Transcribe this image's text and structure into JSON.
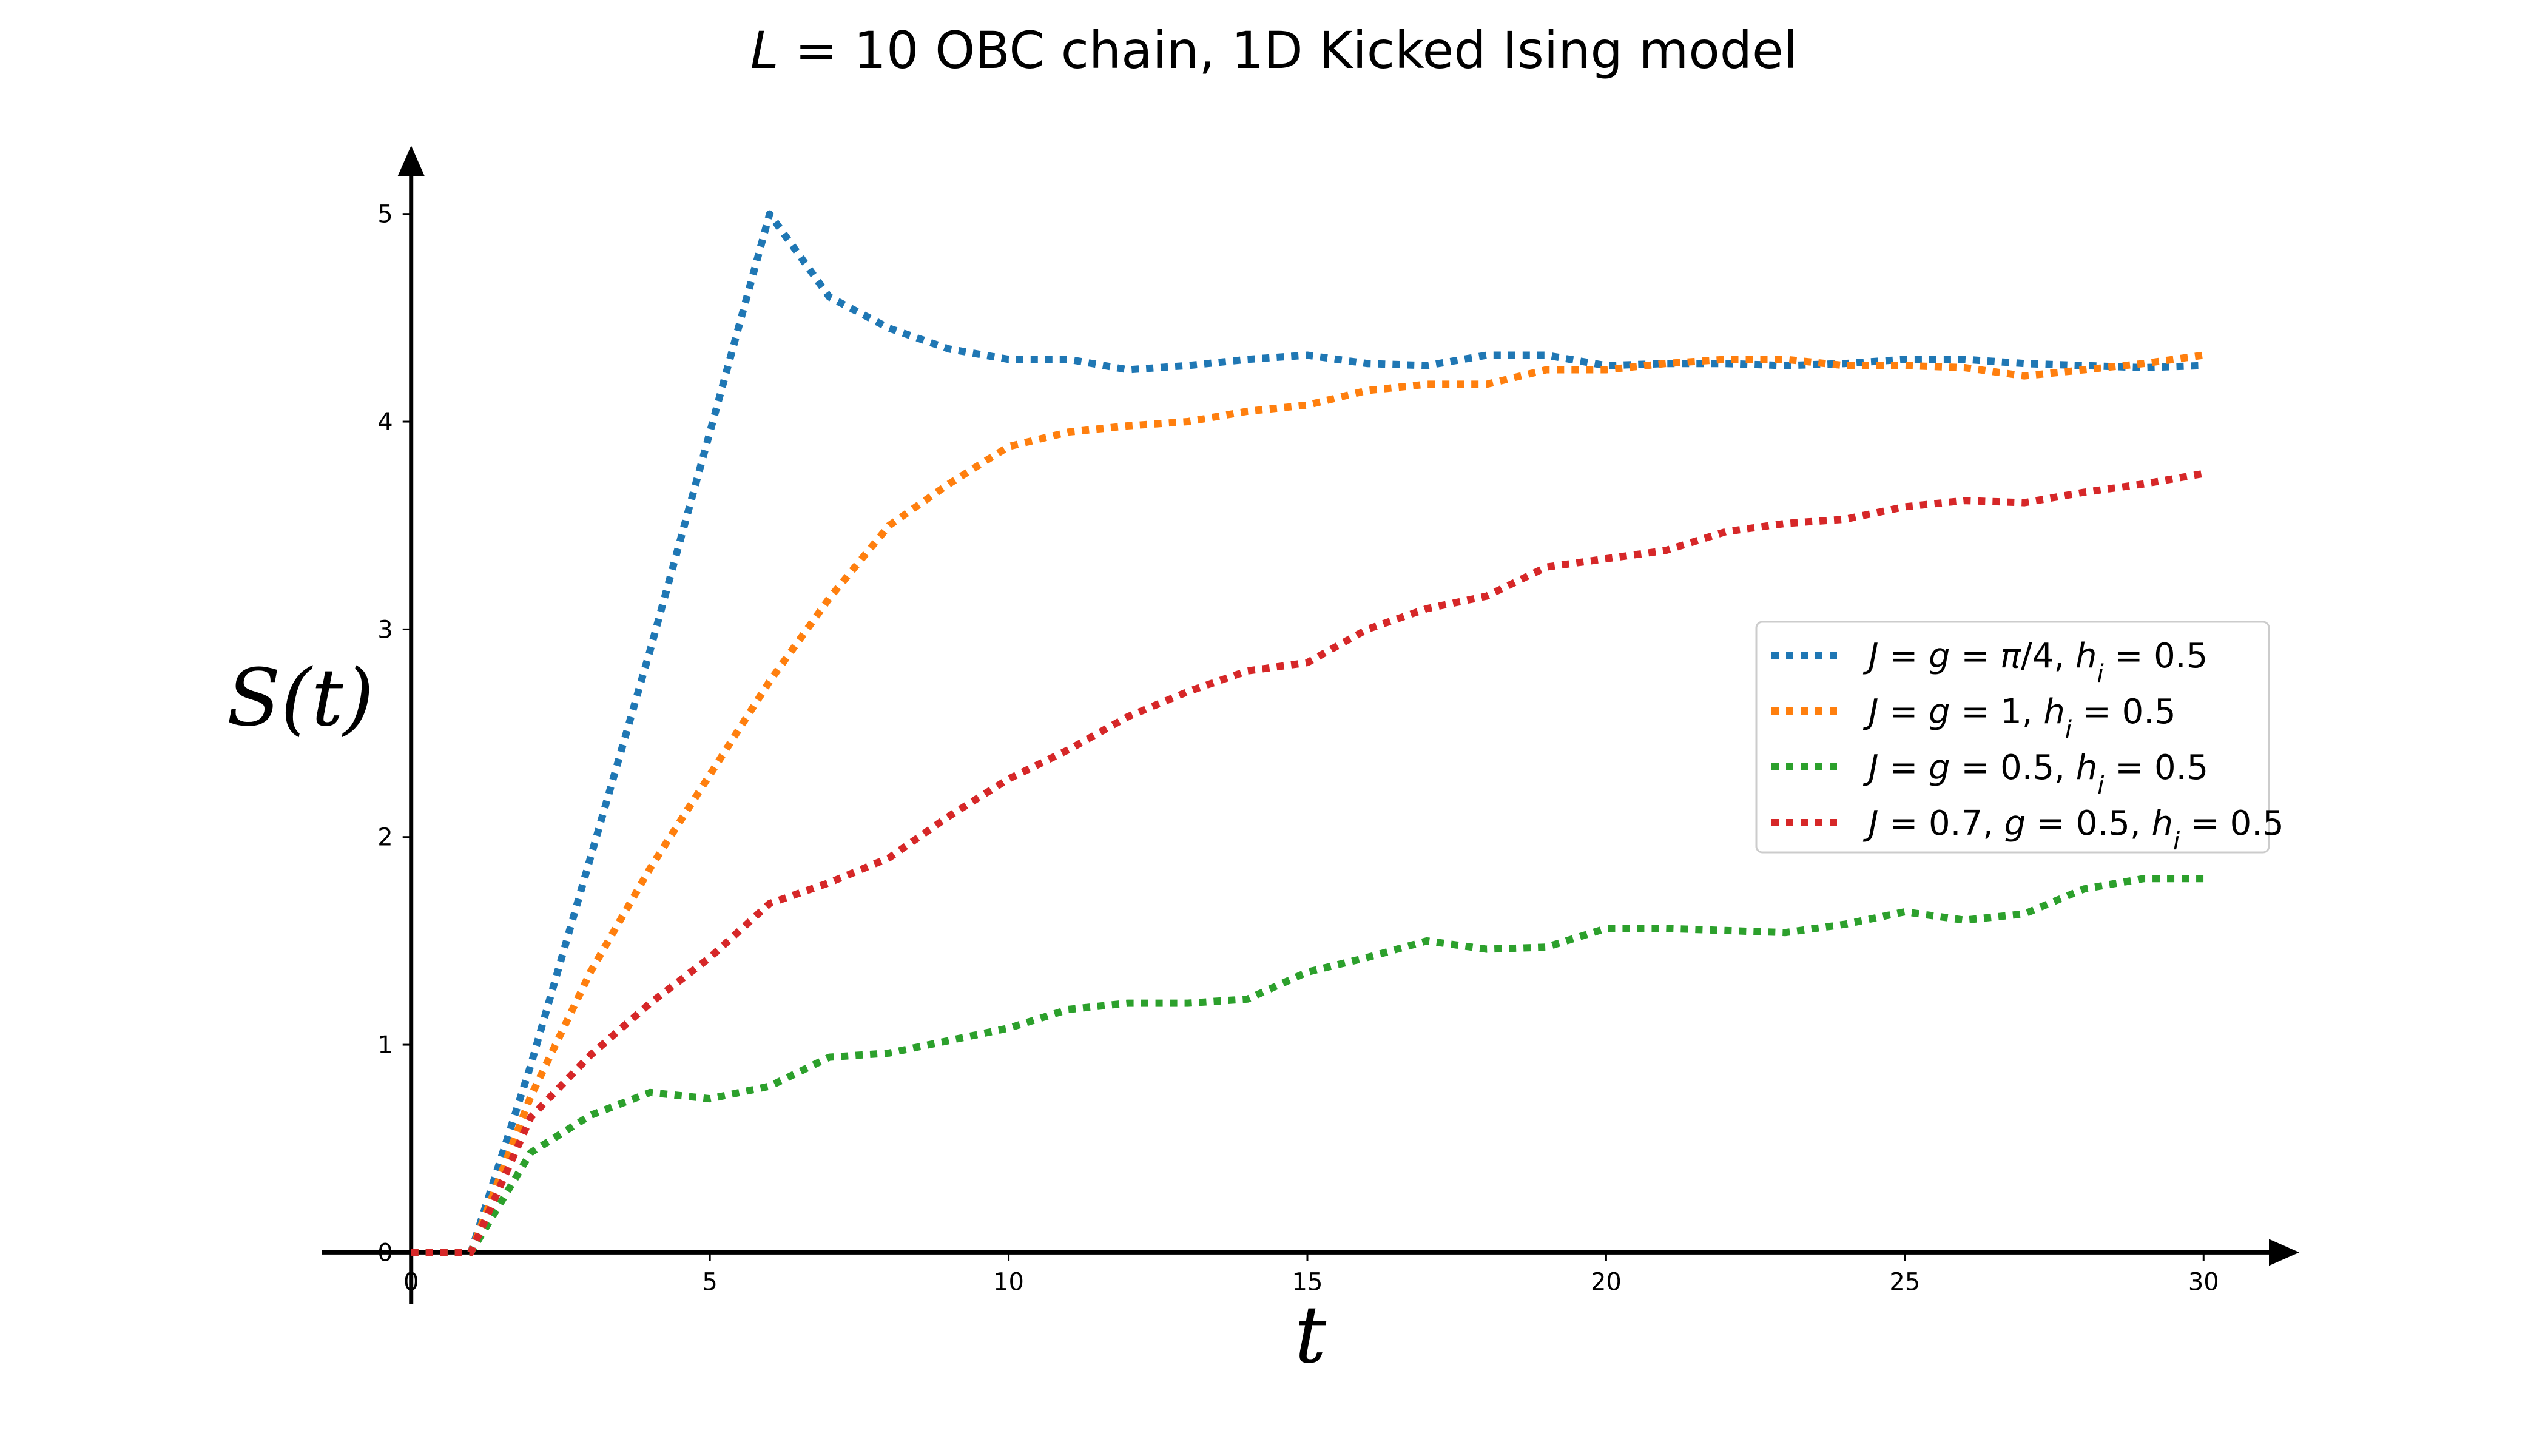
{
  "chart_data": {
    "type": "line",
    "title": "L = 10 OBC chain, 1D Kicked Ising model",
    "xlabel": "t",
    "ylabel": "S(t)",
    "xlim": [
      -1.5,
      31.5
    ],
    "ylim": [
      -0.25,
      5.3
    ],
    "x_ticks": [
      0,
      5,
      10,
      15,
      20,
      25,
      30
    ],
    "y_ticks": [
      0,
      1,
      2,
      3,
      4,
      5
    ],
    "grid": false,
    "legend_position": "center-right",
    "series": [
      {
        "name": "J = g = π/4, h_i = 0.5",
        "color": "#1f77b4",
        "x": [
          0,
          1,
          2,
          3,
          4,
          5,
          6,
          7,
          8,
          9,
          10,
          11,
          12,
          13,
          14,
          15,
          16,
          17,
          18,
          19,
          20,
          21,
          22,
          23,
          24,
          25,
          26,
          27,
          28,
          29,
          30
        ],
        "y": [
          0.0,
          0.0,
          0.9,
          1.9,
          2.9,
          3.95,
          5.0,
          4.6,
          4.45,
          4.35,
          4.3,
          4.3,
          4.25,
          4.27,
          4.3,
          4.32,
          4.28,
          4.27,
          4.32,
          4.32,
          4.27,
          4.28,
          4.28,
          4.27,
          4.28,
          4.3,
          4.3,
          4.28,
          4.27,
          4.26,
          4.27
        ]
      },
      {
        "name": "J = g = 1, h_i = 0.5",
        "color": "#ff7f0e",
        "x": [
          0,
          1,
          2,
          3,
          4,
          5,
          6,
          7,
          8,
          9,
          10,
          11,
          12,
          13,
          14,
          15,
          16,
          17,
          18,
          19,
          20,
          21,
          22,
          23,
          24,
          25,
          26,
          27,
          28,
          29,
          30
        ],
        "y": [
          0.0,
          0.0,
          0.75,
          1.35,
          1.85,
          2.3,
          2.75,
          3.15,
          3.5,
          3.7,
          3.88,
          3.95,
          3.98,
          4.0,
          4.05,
          4.08,
          4.15,
          4.18,
          4.18,
          4.25,
          4.25,
          4.28,
          4.3,
          4.3,
          4.27,
          4.27,
          4.26,
          4.22,
          4.25,
          4.28,
          4.32
        ]
      },
      {
        "name": "J = g = 0.5, h_i = 0.5",
        "color": "#2ca02c",
        "x": [
          0,
          1,
          2,
          3,
          4,
          5,
          6,
          7,
          8,
          9,
          10,
          11,
          12,
          13,
          14,
          15,
          16,
          17,
          18,
          19,
          20,
          21,
          22,
          23,
          24,
          25,
          26,
          27,
          28,
          29,
          30
        ],
        "y": [
          0.0,
          0.0,
          0.48,
          0.66,
          0.77,
          0.74,
          0.8,
          0.94,
          0.96,
          1.02,
          1.08,
          1.17,
          1.2,
          1.2,
          1.22,
          1.35,
          1.42,
          1.5,
          1.46,
          1.47,
          1.56,
          1.56,
          1.55,
          1.54,
          1.58,
          1.64,
          1.6,
          1.63,
          1.75,
          1.8,
          1.8
        ]
      },
      {
        "name": "J = 0.7, g = 0.5, h_i = 0.5",
        "color": "#d62728",
        "x": [
          0,
          1,
          2,
          3,
          4,
          5,
          6,
          7,
          8,
          9,
          10,
          11,
          12,
          13,
          14,
          15,
          16,
          17,
          18,
          19,
          20,
          21,
          22,
          23,
          24,
          25,
          26,
          27,
          28,
          29,
          30
        ],
        "y": [
          0.0,
          0.0,
          0.65,
          0.95,
          1.2,
          1.42,
          1.68,
          1.78,
          1.9,
          2.1,
          2.28,
          2.42,
          2.58,
          2.7,
          2.8,
          2.84,
          3.0,
          3.1,
          3.16,
          3.3,
          3.34,
          3.38,
          3.47,
          3.51,
          3.53,
          3.59,
          3.62,
          3.61,
          3.66,
          3.7,
          3.75
        ]
      }
    ]
  },
  "legend_rich": [
    [
      {
        "t": "J",
        "i": true
      },
      {
        "t": " = "
      },
      {
        "t": "g",
        "i": true
      },
      {
        "t": " = "
      },
      {
        "t": "π",
        "i": true
      },
      {
        "t": "/4, "
      },
      {
        "t": "h",
        "i": true
      },
      {
        "t": "i",
        "i": true,
        "sub": true
      },
      {
        "t": " = 0.5"
      }
    ],
    [
      {
        "t": "J",
        "i": true
      },
      {
        "t": " = "
      },
      {
        "t": "g",
        "i": true
      },
      {
        "t": " = 1, "
      },
      {
        "t": "h",
        "i": true
      },
      {
        "t": "i",
        "i": true,
        "sub": true
      },
      {
        "t": " = 0.5"
      }
    ],
    [
      {
        "t": "J",
        "i": true
      },
      {
        "t": " = "
      },
      {
        "t": "g",
        "i": true
      },
      {
        "t": " = 0.5, "
      },
      {
        "t": "h",
        "i": true
      },
      {
        "t": "i",
        "i": true,
        "sub": true
      },
      {
        "t": " = 0.5"
      }
    ],
    [
      {
        "t": "J",
        "i": true
      },
      {
        "t": " = 0.7, "
      },
      {
        "t": "g",
        "i": true
      },
      {
        "t": " = 0.5, "
      },
      {
        "t": "h",
        "i": true
      },
      {
        "t": "i",
        "i": true,
        "sub": true
      },
      {
        "t": " = 0.5"
      }
    ]
  ],
  "title_rich": [
    {
      "t": "L",
      "i": true
    },
    {
      "t": " = 10 OBC chain, 1D Kicked Ising model"
    }
  ],
  "ylabel_rich": [
    {
      "t": "S",
      "i": true
    },
    {
      "t": "(",
      "i": false
    },
    {
      "t": "t",
      "i": true
    },
    {
      "t": ")",
      "i": false
    }
  ]
}
